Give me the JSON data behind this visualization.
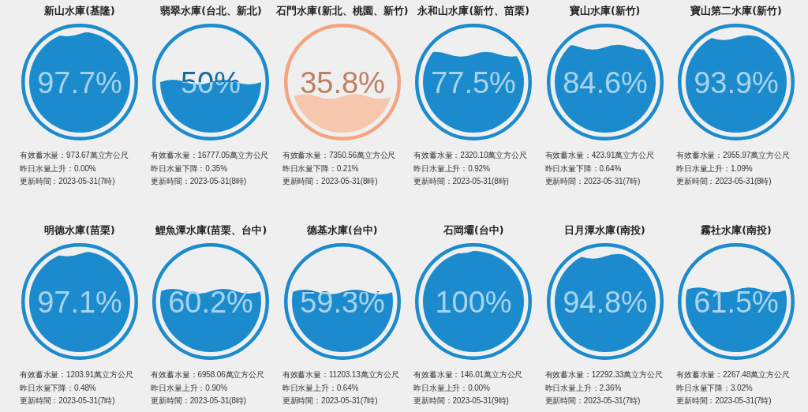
{
  "chart_data": [
    {
      "type": "other",
      "title": "新山水庫(基隆)",
      "values": [
        97.7
      ],
      "value_labels": [
        "97.7%"
      ],
      "color": "#1b8bcd",
      "colors": [
        "#1b8bcd"
      ],
      "annotations": [
        "有效蓄水量：973.67萬立方公尺",
        "昨日水量上升：0.00%",
        "更新時間：2023-05-31(7時)"
      ]
    },
    {
      "type": "other",
      "title": "翡翠水庫(台北、新北)",
      "values": [
        50
      ],
      "value_labels": [
        "50%"
      ],
      "color": "#1b8bcd",
      "colors": [
        "#1b8bcd"
      ],
      "annotations": [
        "有效蓄水量：16777.05萬立方公尺",
        "昨日水量下降：0.35%",
        "更新時間：2023-05-31(8時)"
      ]
    },
    {
      "type": "other",
      "title": "石門水庫(新北、桃園、新竹)",
      "values": [
        35.8
      ],
      "value_labels": [
        "35.8%"
      ],
      "color": "#f4a47e",
      "colors": [
        "#f6c6ad"
      ],
      "annotations": [
        "有效蓄水量：7350.56萬立方公尺",
        "昨日水量下降：0.21%",
        "更新時間：2023-05-31(8時)"
      ]
    },
    {
      "type": "other",
      "title": "永和山水庫(新竹、苗栗)",
      "values": [
        77.5
      ],
      "value_labels": [
        "77.5%"
      ],
      "color": "#1b8bcd",
      "colors": [
        "#1b8bcd"
      ],
      "annotations": [
        "有效蓄水量：2320.10萬立方公尺",
        "昨日水量上升：0.92%",
        "更新時間：2023-05-31(8時)"
      ]
    },
    {
      "type": "other",
      "title": "寶山水庫(新竹)",
      "values": [
        84.6
      ],
      "value_labels": [
        "84.6%"
      ],
      "color": "#1b8bcd",
      "colors": [
        "#1b8bcd"
      ],
      "annotations": [
        "有效蓄水量：423.91萬立方公尺",
        "昨日水量下降：0.64%",
        "更新時間：2023-05-31(7時)"
      ]
    },
    {
      "type": "other",
      "title": "寶山第二水庫(新竹)",
      "values": [
        93.9
      ],
      "value_labels": [
        "93.9%"
      ],
      "color": "#1b8bcd",
      "colors": [
        "#1b8bcd"
      ],
      "annotations": [
        "有效蓄水量：2955.97萬立方公尺",
        "昨日水量上升：1.09%",
        "更新時間：2023-05-31(8時)"
      ]
    },
    {
      "type": "other",
      "title": "明德水庫(苗栗)",
      "values": [
        97.1
      ],
      "value_labels": [
        "97.1%"
      ],
      "color": "#1b8bcd",
      "colors": [
        "#1b8bcd"
      ],
      "annotations": [
        "有效蓄水量：1203.91萬立方公尺",
        "昨日水量下降：0.48%",
        "更新時間：2023-05-31(7時)"
      ]
    },
    {
      "type": "other",
      "title": "鯉魚潭水庫(苗栗、台中)",
      "values": [
        60.2
      ],
      "value_labels": [
        "60.2%"
      ],
      "color": "#1b8bcd",
      "colors": [
        "#1b8bcd"
      ],
      "annotations": [
        "有效蓄水量：6958.06萬立方公尺",
        "昨日水量上升：0.90%",
        "更新時間：2023-05-31(8時)"
      ]
    },
    {
      "type": "other",
      "title": "德基水庫(台中)",
      "values": [
        59.3
      ],
      "value_labels": [
        "59.3%"
      ],
      "color": "#1b8bcd",
      "colors": [
        "#1b8bcd"
      ],
      "annotations": [
        "有效蓄水量：11203.13萬立方公尺",
        "昨日水量上升：0.64%",
        "更新時間：2023-05-31(7時)"
      ]
    },
    {
      "type": "other",
      "title": "石岡壩(台中)",
      "values": [
        100
      ],
      "value_labels": [
        "100%"
      ],
      "color": "#1b8bcd",
      "colors": [
        "#1b8bcd"
      ],
      "annotations": [
        "有效蓄水量：146.01萬立方公尺",
        "昨日水量上升：0.00%",
        "更新時間：2023-05-31(9時)"
      ]
    },
    {
      "type": "other",
      "title": "日月潭水庫(南投)",
      "values": [
        94.8
      ],
      "value_labels": [
        "94.8%"
      ],
      "color": "#1b8bcd",
      "colors": [
        "#1b8bcd"
      ],
      "annotations": [
        "有效蓄水量：12292.33萬立方公尺",
        "昨日水量上升：2.36%",
        "更新時間：2023-05-31(7時)"
      ]
    },
    {
      "type": "other",
      "title": "霧社水庫(南投)",
      "values": [
        61.5
      ],
      "value_labels": [
        "61.5%"
      ],
      "color": "#1b8bcd",
      "colors": [
        "#1b8bcd"
      ],
      "annotations": [
        "有效蓄水量：2267.48萬立方公尺",
        "昨日水量下降：3.02%",
        "更新時間：2023-05-31(7時)"
      ]
    }
  ]
}
